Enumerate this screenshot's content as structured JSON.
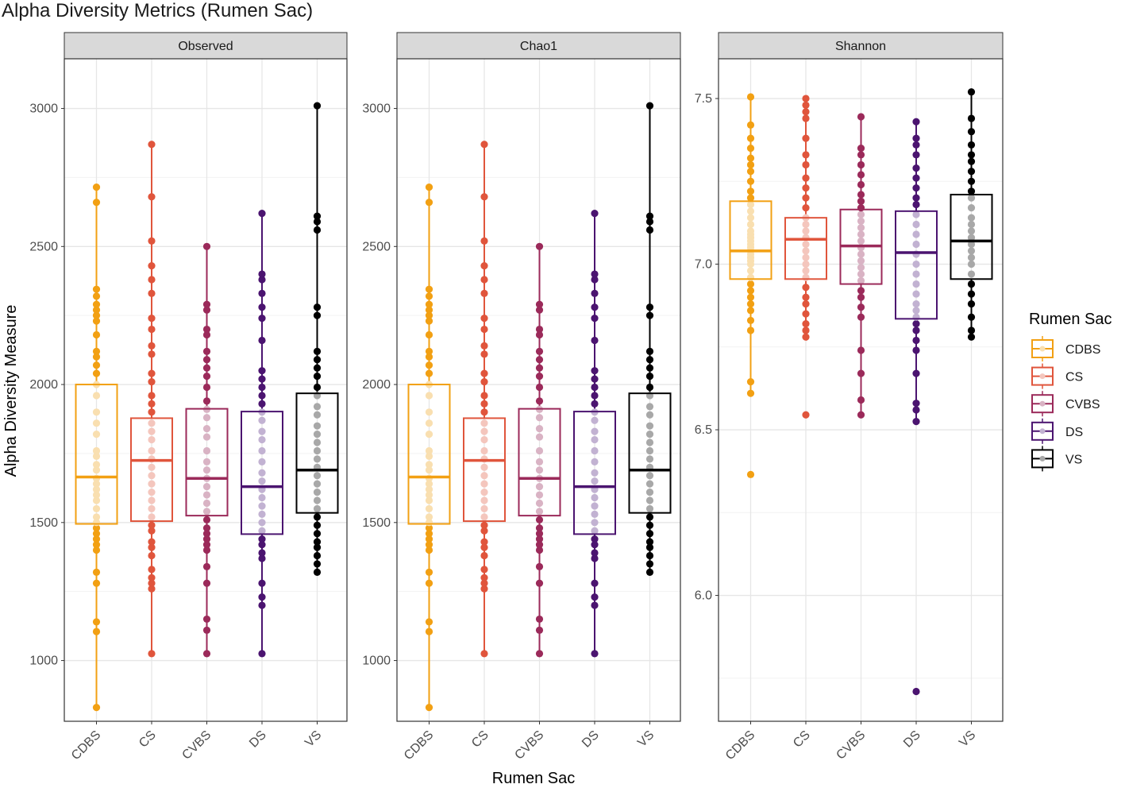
{
  "chart_data": {
    "type": "box",
    "title": "Alpha Diversity Metrics (Rumen Sac)",
    "xlabel": "Rumen Sac",
    "ylabel": "Alpha Diversity Measure",
    "categories": [
      "CDBS",
      "CS",
      "CVBS",
      "DS",
      "VS"
    ],
    "colors": {
      "CDBS": "#f2a013",
      "CS": "#e0553c",
      "CVBS": "#9b2a5a",
      "DS": "#4b1470",
      "VS": "#000000"
    },
    "light_colors": {
      "CDBS": "#f9dfb0",
      "CS": "#f4c6bd",
      "CVBS": "#d9b3c4",
      "DS": "#c2b2d2",
      "VS": "#a8a8a8"
    },
    "legend": {
      "title": "Rumen Sac",
      "entries": [
        "CDBS",
        "CS",
        "CVBS",
        "DS",
        "VS"
      ]
    },
    "panels": [
      {
        "name": "Observed",
        "ylim": [
          780,
          3180
        ],
        "yticks": [
          1000,
          1500,
          2000,
          2500,
          3000
        ],
        "boxes": {
          "CDBS": {
            "min": 830,
            "q1": 1495,
            "median": 1665,
            "q3": 2000,
            "max": 2715
          },
          "CS": {
            "min": 1025,
            "q1": 1505,
            "median": 1725,
            "q3": 1878,
            "max": 2870
          },
          "CVBS": {
            "min": 1025,
            "q1": 1525,
            "median": 1660,
            "q3": 1912,
            "max": 2500
          },
          "DS": {
            "min": 1025,
            "q1": 1458,
            "median": 1630,
            "q3": 1902,
            "max": 2620
          },
          "VS": {
            "min": 1320,
            "q1": 1535,
            "median": 1690,
            "q3": 1968,
            "max": 3010
          }
        },
        "points": {
          "CDBS": [
            830,
            1105,
            1140,
            1280,
            1320,
            1400,
            1420,
            1440,
            1460,
            1480,
            1500,
            1520,
            1550,
            1580,
            1600,
            1620,
            1640,
            1660,
            1690,
            1710,
            1740,
            1760,
            1820,
            1860,
            1900,
            1960,
            2000,
            2040,
            2070,
            2100,
            2120,
            2180,
            2230,
            2250,
            2270,
            2290,
            2320,
            2345,
            2660,
            2715
          ],
          "CS": [
            1025,
            1260,
            1280,
            1300,
            1330,
            1380,
            1410,
            1430,
            1470,
            1490,
            1520,
            1550,
            1580,
            1610,
            1640,
            1670,
            1700,
            1730,
            1760,
            1800,
            1830,
            1860,
            1900,
            1930,
            1960,
            2010,
            2040,
            2110,
            2140,
            2200,
            2240,
            2330,
            2380,
            2430,
            2520,
            2680,
            2870
          ],
          "CVBS": [
            1025,
            1110,
            1150,
            1280,
            1340,
            1400,
            1420,
            1440,
            1460,
            1480,
            1510,
            1540,
            1570,
            1600,
            1630,
            1660,
            1690,
            1720,
            1760,
            1810,
            1840,
            1880,
            1910,
            1940,
            1990,
            2030,
            2060,
            2090,
            2120,
            2180,
            2200,
            2270,
            2290,
            2500
          ],
          "DS": [
            1025,
            1200,
            1230,
            1280,
            1370,
            1390,
            1420,
            1440,
            1470,
            1500,
            1530,
            1560,
            1590,
            1620,
            1650,
            1680,
            1720,
            1760,
            1800,
            1830,
            1870,
            1900,
            1930,
            1960,
            1990,
            2020,
            2050,
            2160,
            2240,
            2280,
            2330,
            2380,
            2400,
            2620
          ],
          "VS": [
            1320,
            1350,
            1380,
            1410,
            1430,
            1460,
            1490,
            1520,
            1550,
            1580,
            1610,
            1640,
            1670,
            1700,
            1730,
            1760,
            1790,
            1820,
            1850,
            1890,
            1920,
            1960,
            1990,
            2030,
            2060,
            2090,
            2120,
            2250,
            2280,
            2560,
            2590,
            2610,
            3010
          ]
        }
      },
      {
        "name": "Chao1",
        "ylim": [
          780,
          3180
        ],
        "yticks": [
          1000,
          1500,
          2000,
          2500,
          3000
        ],
        "boxes": {
          "CDBS": {
            "min": 830,
            "q1": 1495,
            "median": 1665,
            "q3": 2000,
            "max": 2715
          },
          "CS": {
            "min": 1025,
            "q1": 1505,
            "median": 1725,
            "q3": 1878,
            "max": 2870
          },
          "CVBS": {
            "min": 1025,
            "q1": 1525,
            "median": 1660,
            "q3": 1912,
            "max": 2500
          },
          "DS": {
            "min": 1025,
            "q1": 1458,
            "median": 1630,
            "q3": 1902,
            "max": 2620
          },
          "VS": {
            "min": 1320,
            "q1": 1535,
            "median": 1690,
            "q3": 1968,
            "max": 3010
          }
        },
        "points": {
          "CDBS": [
            830,
            1105,
            1140,
            1280,
            1320,
            1400,
            1420,
            1440,
            1460,
            1480,
            1500,
            1520,
            1550,
            1580,
            1600,
            1620,
            1640,
            1660,
            1690,
            1710,
            1740,
            1760,
            1820,
            1860,
            1900,
            1960,
            2000,
            2040,
            2070,
            2100,
            2120,
            2180,
            2230,
            2250,
            2270,
            2290,
            2320,
            2345,
            2660,
            2715
          ],
          "CS": [
            1025,
            1260,
            1280,
            1300,
            1330,
            1380,
            1410,
            1430,
            1470,
            1490,
            1520,
            1550,
            1580,
            1610,
            1640,
            1670,
            1700,
            1730,
            1760,
            1800,
            1830,
            1860,
            1900,
            1930,
            1960,
            2010,
            2040,
            2110,
            2140,
            2200,
            2240,
            2330,
            2380,
            2430,
            2520,
            2680,
            2870
          ],
          "CVBS": [
            1025,
            1110,
            1150,
            1280,
            1340,
            1400,
            1420,
            1440,
            1460,
            1480,
            1510,
            1540,
            1570,
            1600,
            1630,
            1660,
            1690,
            1720,
            1760,
            1810,
            1840,
            1880,
            1910,
            1940,
            1990,
            2030,
            2060,
            2090,
            2120,
            2180,
            2200,
            2270,
            2290,
            2500
          ],
          "DS": [
            1025,
            1200,
            1230,
            1280,
            1370,
            1390,
            1420,
            1440,
            1470,
            1500,
            1530,
            1560,
            1590,
            1620,
            1650,
            1680,
            1720,
            1760,
            1800,
            1830,
            1870,
            1900,
            1930,
            1960,
            1990,
            2020,
            2050,
            2160,
            2240,
            2280,
            2330,
            2380,
            2400,
            2620
          ],
          "VS": [
            1320,
            1350,
            1380,
            1410,
            1430,
            1460,
            1490,
            1520,
            1550,
            1580,
            1610,
            1640,
            1670,
            1700,
            1730,
            1760,
            1790,
            1820,
            1850,
            1890,
            1920,
            1960,
            1990,
            2030,
            2060,
            2090,
            2120,
            2250,
            2280,
            2560,
            2590,
            2610,
            3010
          ]
        }
      },
      {
        "name": "Shannon",
        "ylim": [
          5.62,
          7.62
        ],
        "yticks": [
          6.0,
          6.5,
          7.0,
          7.5
        ],
        "tick_decimals": 1,
        "boxes": {
          "CDBS": {
            "min": 6.61,
            "q1": 6.955,
            "median": 7.04,
            "q3": 7.19,
            "max": 7.505
          },
          "CS": {
            "min": 6.78,
            "q1": 6.955,
            "median": 7.075,
            "q3": 7.14,
            "max": 7.5
          },
          "CVBS": {
            "min": 6.545,
            "q1": 6.94,
            "median": 7.055,
            "q3": 7.165,
            "max": 7.445
          },
          "DS": {
            "min": 6.525,
            "q1": 6.835,
            "median": 7.035,
            "q3": 7.16,
            "max": 7.43
          },
          "VS": {
            "min": 6.78,
            "q1": 6.955,
            "median": 7.07,
            "q3": 7.21,
            "max": 7.52
          }
        },
        "points": {
          "CDBS": [
            6.365,
            6.61,
            6.645,
            6.8,
            6.83,
            6.86,
            6.88,
            6.9,
            6.92,
            6.94,
            6.96,
            6.98,
            7.0,
            7.01,
            7.02,
            7.03,
            7.04,
            7.05,
            7.06,
            7.07,
            7.08,
            7.09,
            7.1,
            7.12,
            7.14,
            7.16,
            7.18,
            7.2,
            7.22,
            7.25,
            7.28,
            7.3,
            7.32,
            7.35,
            7.38,
            7.42,
            7.505
          ],
          "CS": [
            6.545,
            6.78,
            6.8,
            6.82,
            6.85,
            6.88,
            6.9,
            6.93,
            6.96,
            6.98,
            7.0,
            7.02,
            7.04,
            7.06,
            7.08,
            7.1,
            7.12,
            7.14,
            7.17,
            7.2,
            7.23,
            7.26,
            7.3,
            7.33,
            7.38,
            7.44,
            7.46,
            7.48,
            7.5
          ],
          "CVBS": [
            6.545,
            6.59,
            6.67,
            6.74,
            6.84,
            6.87,
            6.9,
            6.92,
            6.95,
            6.97,
            6.99,
            7.01,
            7.03,
            7.05,
            7.07,
            7.09,
            7.11,
            7.13,
            7.15,
            7.17,
            7.19,
            7.21,
            7.24,
            7.27,
            7.3,
            7.33,
            7.35,
            7.445
          ],
          "DS": [
            5.71,
            6.525,
            6.56,
            6.58,
            6.67,
            6.74,
            6.77,
            6.8,
            6.82,
            6.84,
            6.86,
            6.88,
            6.91,
            6.94,
            6.97,
            7.0,
            7.03,
            7.06,
            7.09,
            7.12,
            7.15,
            7.18,
            7.2,
            7.23,
            7.26,
            7.29,
            7.33,
            7.36,
            7.38,
            7.43
          ],
          "VS": [
            6.78,
            6.8,
            6.84,
            6.88,
            6.91,
            6.94,
            6.97,
            7.0,
            7.02,
            7.04,
            7.06,
            7.08,
            7.1,
            7.12,
            7.14,
            7.17,
            7.2,
            7.22,
            7.25,
            7.28,
            7.31,
            7.33,
            7.36,
            7.4,
            7.44,
            7.52
          ]
        }
      }
    ]
  }
}
